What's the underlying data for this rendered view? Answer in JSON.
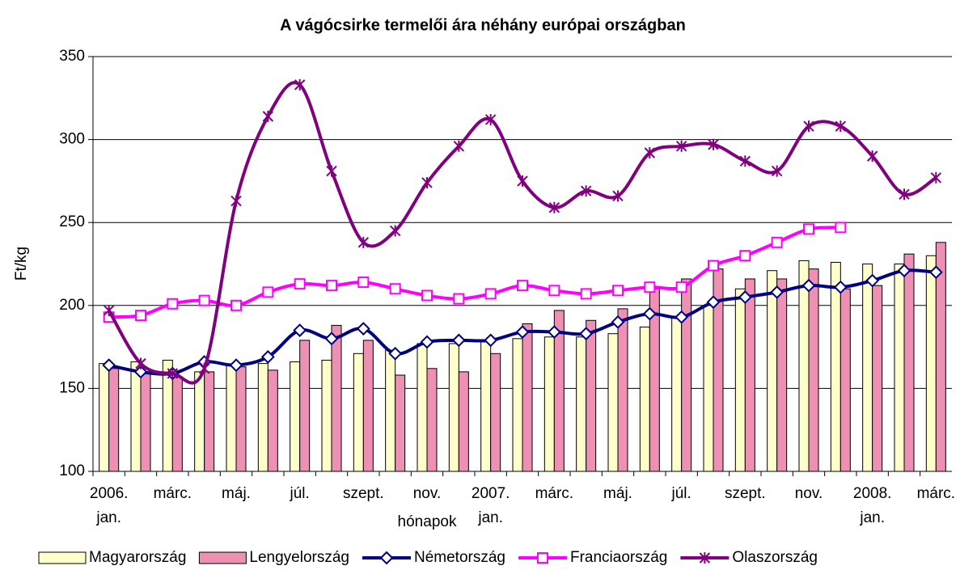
{
  "chart_data": {
    "type": "bar_line",
    "title": "A vágócsirke termelői ára néhány európai országban",
    "x_label": "hónapok",
    "y_label": "Ft/kg",
    "categories": [
      "2006. jan.",
      null,
      "márc.",
      null,
      "máj.",
      null,
      "júl.",
      null,
      "szept.",
      null,
      "nov.",
      null,
      "2007. jan.",
      null,
      "márc.",
      null,
      "máj.",
      null,
      "júl.",
      null,
      "szept.",
      null,
      "nov.",
      null,
      "2008. jan.",
      null,
      "márc."
    ],
    "ylim": [
      100,
      350
    ],
    "yticks": [
      100,
      150,
      200,
      250,
      300,
      350
    ],
    "grid": true,
    "legend": "bottom",
    "series": [
      {
        "name": "Magyarország",
        "kind": "bar",
        "color": "#ffffcc",
        "values": [
          165,
          166,
          167,
          160,
          164,
          165,
          166,
          167,
          171,
          173,
          177,
          177,
          178,
          180,
          181,
          181,
          183,
          187,
          193,
          200,
          210,
          221,
          227,
          226,
          225,
          225,
          230
        ]
      },
      {
        "name": "Lengyelország",
        "kind": "bar",
        "color": "#ee8fb4",
        "values": [
          162,
          160,
          157,
          160,
          163,
          161,
          179,
          188,
          179,
          158,
          162,
          160,
          171,
          189,
          197,
          191,
          198,
          210,
          216,
          222,
          216,
          216,
          222,
          210,
          212,
          231,
          238
        ]
      },
      {
        "name": "Németország",
        "kind": "line",
        "marker": "diamond",
        "color": "#000080",
        "values": [
          164,
          160,
          159,
          166,
          164,
          169,
          185,
          180,
          186,
          171,
          178,
          179,
          179,
          184,
          184,
          183,
          190,
          195,
          193,
          202,
          205,
          208,
          212,
          211,
          215,
          221,
          220
        ]
      },
      {
        "name": "Franciaország",
        "kind": "line",
        "marker": "square",
        "color": "#ff00ff",
        "values": [
          193,
          194,
          201,
          203,
          200,
          208,
          213,
          212,
          214,
          210,
          206,
          204,
          207,
          212,
          209,
          207,
          209,
          211,
          211,
          224,
          230,
          238,
          246,
          247,
          null,
          null,
          null
        ]
      },
      {
        "name": "Olaszország",
        "kind": "line",
        "marker": "star",
        "color": "#800080",
        "values": [
          197,
          165,
          159,
          162,
          263,
          314,
          333,
          281,
          238,
          245,
          274,
          296,
          312,
          275,
          259,
          269,
          266,
          292,
          296,
          297,
          287,
          281,
          308,
          308,
          290,
          267,
          277
        ]
      }
    ]
  }
}
